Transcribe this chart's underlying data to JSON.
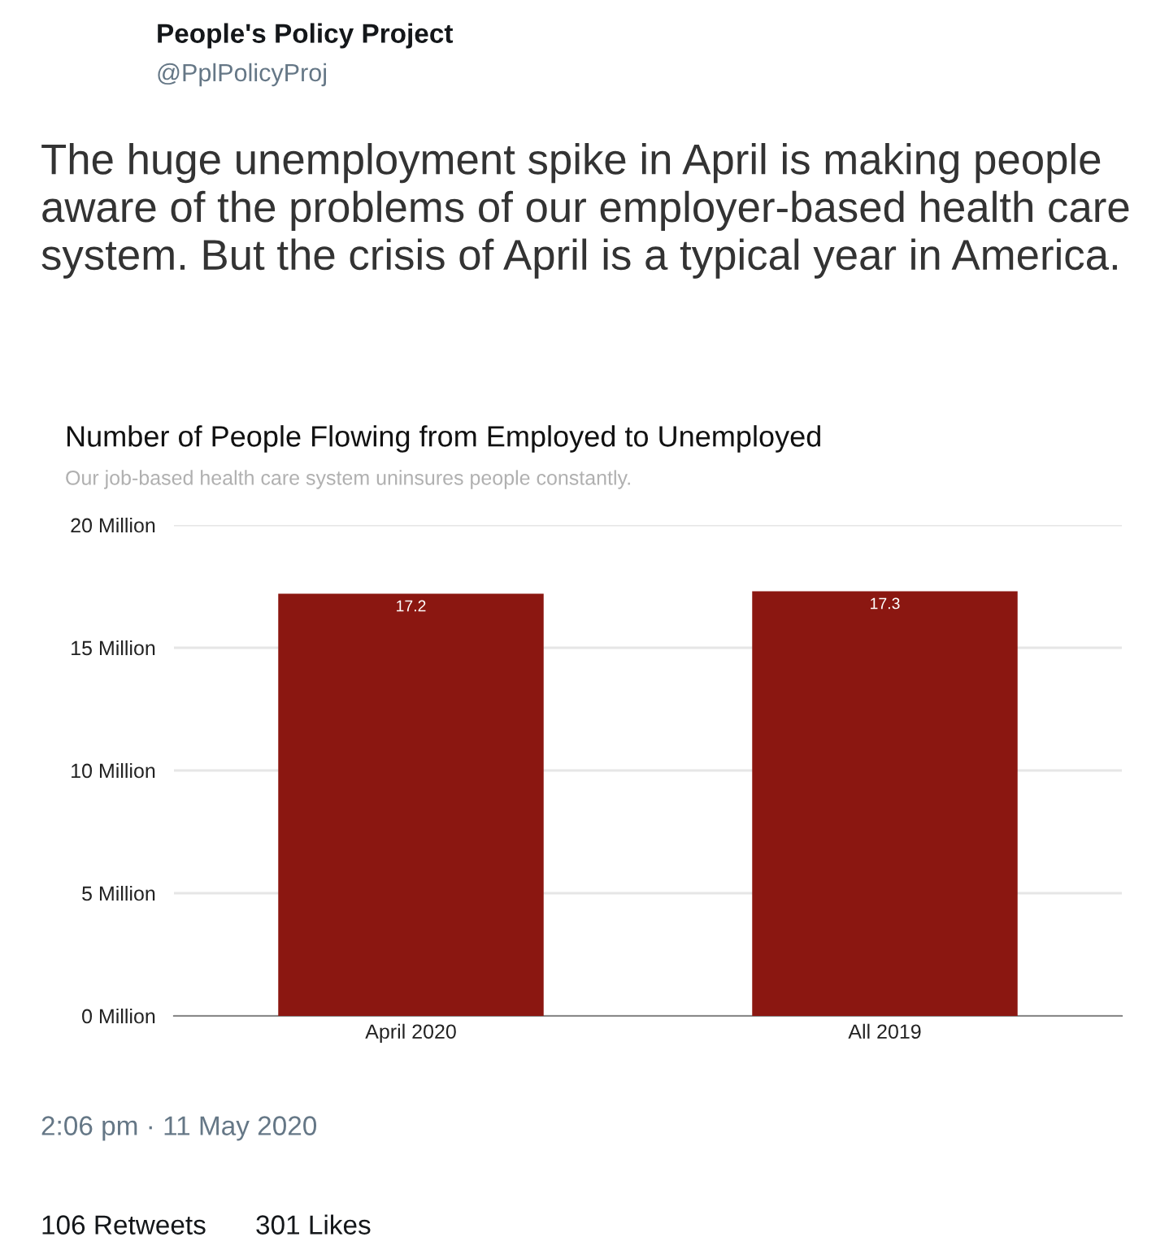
{
  "chart_data": {
    "type": "bar",
    "title": "Number of People Flowing from Employed to Unemployed",
    "subtitle": "Our job-based health care system uninsures people constantly.",
    "categories": [
      "April 2020",
      "All 2019"
    ],
    "values": [
      17.2,
      17.3
    ],
    "color": "#8b1711",
    "data_labels": true,
    "ylim": [
      0,
      20
    ],
    "yticks": [
      {
        "value": 0,
        "label": "0 Million"
      },
      {
        "value": 5,
        "label": "5 Million"
      },
      {
        "value": 10,
        "label": "10 Million"
      },
      {
        "value": 15,
        "label": "15 Million"
      },
      {
        "value": 20,
        "label": "20 Million"
      }
    ],
    "grid": "y",
    "annotations": [
      "People's Policy Project",
      "@PplPolicyProj",
      "The huge unemployment spike in April is making people aware of the problems of our employer-based health care system. But the crisis of April is a typical year in America.",
      "2:06 pm · 11 May 2020",
      "106 Retweets",
      "301 Likes"
    ]
  }
}
